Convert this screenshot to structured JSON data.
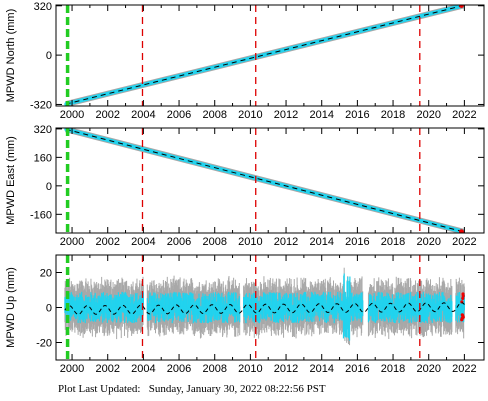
{
  "footer": {
    "label": "Plot Last Updated:",
    "timestamp": "Sunday, January 30, 2022 08:22:56 PST"
  },
  "colors": {
    "data": "#22d3ee",
    "error_bars": "#a8a8a8",
    "model": "#000000",
    "equipment_change": "#dd0000",
    "earthquake": "#22cc22",
    "recent_points": "#ee0000"
  },
  "chart_data": [
    {
      "type": "scatter",
      "ylabel": "MPWD North (mm)",
      "xlim": [
        1999.1,
        2023.1
      ],
      "ylim": [
        -330,
        325
      ],
      "yticks": [
        -320,
        0,
        320
      ],
      "xticks": [
        2000,
        2002,
        2004,
        2006,
        2008,
        2010,
        2012,
        2014,
        2016,
        2018,
        2020,
        2022
      ],
      "trend": {
        "x": [
          1999.65,
          2021.95
        ],
        "y": [
          -318,
          322
        ]
      },
      "grid": false,
      "vertical_markers": [
        {
          "x": 1999.75,
          "color": "green",
          "style": "dashed"
        },
        {
          "x": 2003.95,
          "color": "red",
          "style": "dashed"
        },
        {
          "x": 2010.3,
          "color": "red",
          "style": "dashed"
        },
        {
          "x": 2019.5,
          "color": "red",
          "style": "dashed"
        }
      ]
    },
    {
      "type": "scatter",
      "ylabel": "MPWD East (mm)",
      "xlim": [
        1999.1,
        2023.1
      ],
      "ylim": [
        -265,
        325
      ],
      "yticks": [
        -160,
        0,
        160,
        320
      ],
      "xticks": [
        2000,
        2002,
        2004,
        2006,
        2008,
        2010,
        2012,
        2014,
        2016,
        2018,
        2020,
        2022
      ],
      "trend": {
        "x": [
          1999.65,
          2021.95
        ],
        "y": [
          318,
          -258
        ]
      },
      "grid": false,
      "vertical_markers": [
        {
          "x": 1999.75,
          "color": "green",
          "style": "dashed"
        },
        {
          "x": 2003.95,
          "color": "red",
          "style": "dashed"
        },
        {
          "x": 2010.3,
          "color": "red",
          "style": "dashed"
        },
        {
          "x": 2019.5,
          "color": "red",
          "style": "dashed"
        }
      ]
    },
    {
      "type": "scatter",
      "ylabel": "MPWD Up (mm)",
      "xlim": [
        1999.1,
        2023.1
      ],
      "ylim": [
        -30,
        30
      ],
      "yticks": [
        -20,
        0,
        20
      ],
      "xticks": [
        2000,
        2002,
        2004,
        2006,
        2008,
        2010,
        2012,
        2014,
        2016,
        2018,
        2020,
        2022
      ],
      "trend": {
        "x": [
          1999.65,
          2021.95
        ],
        "y": [
          0,
          0
        ]
      },
      "grid": false,
      "vertical_markers": [
        {
          "x": 1999.75,
          "color": "green",
          "style": "dashed"
        },
        {
          "x": 2003.95,
          "color": "red",
          "style": "dashed"
        },
        {
          "x": 2010.3,
          "color": "red",
          "style": "dashed"
        },
        {
          "x": 2019.5,
          "color": "red",
          "style": "dashed"
        }
      ]
    }
  ]
}
